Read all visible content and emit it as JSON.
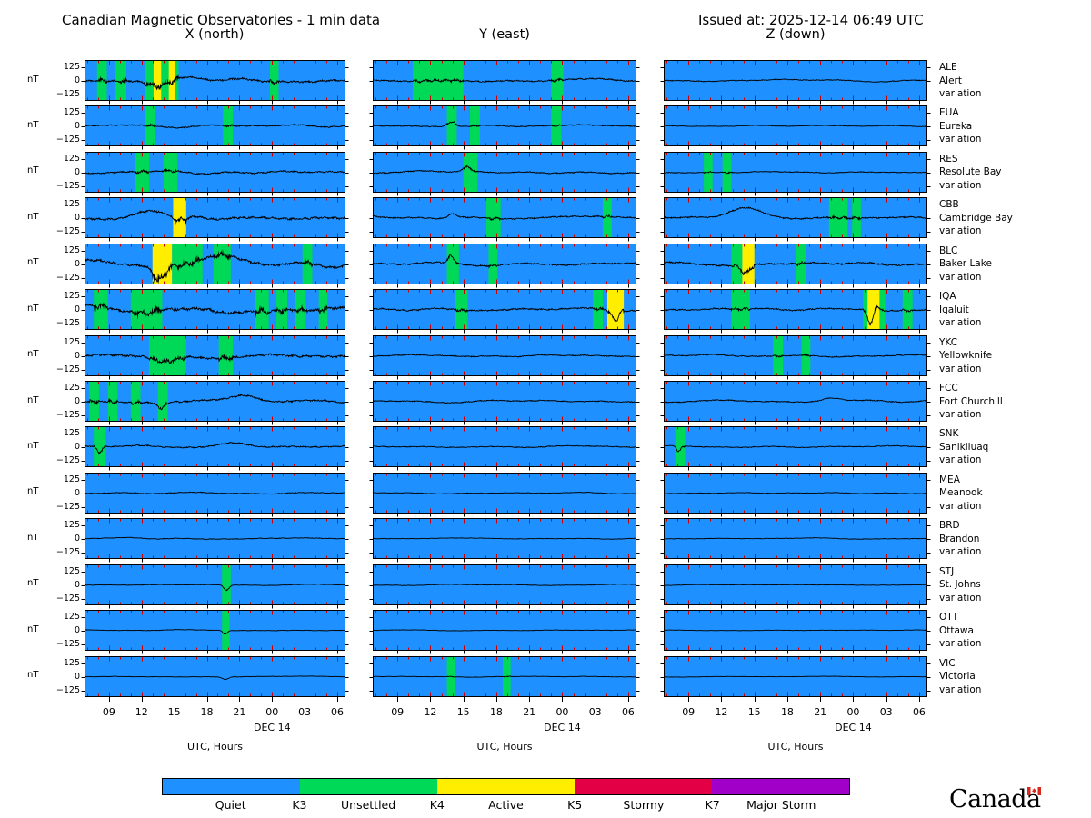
{
  "header": {
    "title": "Canadian Magnetic Observatories - 1 min data",
    "issued": "Issued at: 2025-12-14 06:49 UTC"
  },
  "colors": {
    "quiet": "#1E90FF",
    "unsettled": "#00D957",
    "active": "#FFEE00",
    "stormy": "#E30045",
    "major_storm": "#A100C8",
    "trace": "#000000",
    "tick_red": "#CC0000"
  },
  "chart_data": {
    "type": "line",
    "title": "Canadian Magnetic Observatories - 1 min data",
    "columns": [
      {
        "key": "X",
        "title": "X (north)"
      },
      {
        "key": "Y",
        "title": "Y (east)"
      },
      {
        "key": "Z",
        "title": "Z (down)"
      }
    ],
    "x_axis": {
      "tick_hours": [
        9,
        12,
        15,
        18,
        21,
        24,
        27,
        30
      ],
      "tick_labels": [
        "09",
        "12",
        "15",
        "18",
        "21",
        "00",
        "03",
        "06"
      ],
      "start_hour": 6.75,
      "end_hour": 30.75,
      "date_label": "DEC 14",
      "date_under_label": "00",
      "axis_title": "UTC, Hours"
    },
    "y_axis": {
      "unit": "nT",
      "tick_labels": [
        "125",
        "0",
        "−125"
      ],
      "tick_values": [
        125,
        0,
        -125
      ],
      "ylim": [
        -187.5,
        187.5
      ]
    },
    "band_color_map": {
      "g": "unsettled",
      "y": "active"
    },
    "station_label_suffix": "variation",
    "stations": [
      {
        "code": "ALE",
        "name": "Alert",
        "panels": {
          "X": {
            "amp": 25,
            "bands": [
              {
                "s": 7.9,
                "e": 8.8,
                "l": "g"
              },
              {
                "s": 9.6,
                "e": 10.6,
                "l": "g"
              },
              {
                "s": 12.3,
                "e": 15.4,
                "l": "g"
              },
              {
                "s": 13.1,
                "e": 13.8,
                "l": "y"
              },
              {
                "s": 14.5,
                "e": 15.1,
                "l": "y"
              },
              {
                "s": 23.8,
                "e": 24.6,
                "l": "g"
              }
            ],
            "events": [
              {
                "t": 13.5,
                "w": 1.2,
                "a": -40
              }
            ]
          },
          "Y": {
            "amp": 16,
            "bands": [
              {
                "s": 10.4,
                "e": 15.0,
                "l": "g"
              },
              {
                "s": 23.0,
                "e": 24.1,
                "l": "g"
              }
            ],
            "events": []
          },
          "Z": {
            "amp": 10,
            "bands": [],
            "events": []
          }
        }
      },
      {
        "code": "EUA",
        "name": "Eureka",
        "panels": {
          "X": {
            "amp": 14,
            "bands": [
              {
                "s": 12.3,
                "e": 13.2,
                "l": "g"
              },
              {
                "s": 19.5,
                "e": 20.4,
                "l": "g"
              }
            ],
            "events": []
          },
          "Y": {
            "amp": 12,
            "bands": [
              {
                "s": 13.5,
                "e": 14.4,
                "l": "g"
              },
              {
                "s": 15.6,
                "e": 16.5,
                "l": "g"
              },
              {
                "s": 23.0,
                "e": 23.9,
                "l": "g"
              }
            ],
            "events": [
              {
                "t": 13.9,
                "w": 0.5,
                "a": 45
              }
            ]
          },
          "Z": {
            "amp": 7,
            "bands": [],
            "events": []
          }
        }
      },
      {
        "code": "RES",
        "name": "Resolute Bay",
        "panels": {
          "X": {
            "amp": 17,
            "bands": [
              {
                "s": 11.4,
                "e": 12.7,
                "l": "g"
              },
              {
                "s": 14.0,
                "e": 15.3,
                "l": "g"
              }
            ],
            "events": []
          },
          "Y": {
            "amp": 13,
            "bands": [
              {
                "s": 15.0,
                "e": 16.3,
                "l": "g"
              }
            ],
            "events": [
              {
                "t": 15.3,
                "w": 0.5,
                "a": 40
              }
            ]
          },
          "Z": {
            "amp": 9,
            "bands": [
              {
                "s": 10.4,
                "e": 11.2,
                "l": "g"
              },
              {
                "s": 12.1,
                "e": 12.9,
                "l": "g"
              }
            ],
            "events": []
          }
        }
      },
      {
        "code": "CBB",
        "name": "Cambridge Bay",
        "panels": {
          "X": {
            "amp": 26,
            "bands": [
              {
                "s": 14.9,
                "e": 16.1,
                "l": "y"
              }
            ],
            "events": [
              {
                "t": 13.0,
                "w": 2.0,
                "a": 45
              },
              {
                "t": 15.5,
                "w": 0.9,
                "a": -60
              }
            ]
          },
          "Y": {
            "amp": 16,
            "bands": [
              {
                "s": 17.1,
                "e": 18.4,
                "l": "g"
              },
              {
                "s": 27.7,
                "e": 28.5,
                "l": "g"
              }
            ],
            "events": [
              {
                "t": 14.0,
                "w": 0.6,
                "a": 40
              }
            ]
          },
          "Z": {
            "amp": 18,
            "bands": [
              {
                "s": 21.8,
                "e": 23.5,
                "l": "g"
              },
              {
                "s": 23.9,
                "e": 24.7,
                "l": "g"
              }
            ],
            "events": [
              {
                "t": 14.3,
                "w": 2.2,
                "a": 75
              }
            ]
          }
        }
      },
      {
        "code": "BLC",
        "name": "Baker Lake",
        "panels": {
          "X": {
            "amp": 32,
            "bands": [
              {
                "s": 13.0,
                "e": 14.8,
                "l": "y"
              },
              {
                "s": 14.8,
                "e": 17.6,
                "l": "g"
              },
              {
                "s": 18.6,
                "e": 20.2,
                "l": "g"
              },
              {
                "s": 26.8,
                "e": 27.7,
                "l": "g"
              }
            ],
            "events": [
              {
                "t": 13.6,
                "w": 0.7,
                "a": -120
              },
              {
                "t": 19.5,
                "w": 2.5,
                "a": 55
              }
            ]
          },
          "Y": {
            "amp": 18,
            "bands": [
              {
                "s": 13.5,
                "e": 14.6,
                "l": "g"
              },
              {
                "s": 17.3,
                "e": 18.1,
                "l": "g"
              }
            ],
            "events": [
              {
                "t": 13.9,
                "w": 0.35,
                "a": 70
              }
            ]
          },
          "Z": {
            "amp": 20,
            "bands": [
              {
                "s": 12.9,
                "e": 13.9,
                "l": "g"
              },
              {
                "s": 13.9,
                "e": 15.0,
                "l": "y"
              },
              {
                "s": 18.8,
                "e": 19.7,
                "l": "g"
              }
            ],
            "events": [
              {
                "t": 14.2,
                "w": 0.5,
                "a": -80
              }
            ]
          }
        }
      },
      {
        "code": "IQA",
        "name": "Iqaluit",
        "panels": {
          "X": {
            "amp": 36,
            "bands": [
              {
                "s": 7.6,
                "e": 8.9,
                "l": "g"
              },
              {
                "s": 11.0,
                "e": 13.9,
                "l": "g"
              },
              {
                "s": 22.4,
                "e": 23.7,
                "l": "g"
              },
              {
                "s": 24.4,
                "e": 25.4,
                "l": "g"
              },
              {
                "s": 26.1,
                "e": 27.1,
                "l": "g"
              },
              {
                "s": 28.3,
                "e": 29.1,
                "l": "g"
              }
            ],
            "events": [
              {
                "t": 12.5,
                "w": 1.5,
                "a": -55
              }
            ]
          },
          "Y": {
            "amp": 18,
            "bands": [
              {
                "s": 14.2,
                "e": 15.4,
                "l": "g"
              },
              {
                "s": 26.8,
                "e": 27.7,
                "l": "g"
              },
              {
                "s": 28.1,
                "e": 29.6,
                "l": "y"
              }
            ],
            "events": [
              {
                "t": 28.8,
                "w": 0.4,
                "a": -95
              }
            ]
          },
          "Z": {
            "amp": 16,
            "bands": [
              {
                "s": 12.9,
                "e": 14.6,
                "l": "g"
              },
              {
                "s": 24.9,
                "e": 25.3,
                "l": "g"
              },
              {
                "s": 25.3,
                "e": 26.4,
                "l": "y"
              },
              {
                "s": 26.4,
                "e": 26.9,
                "l": "g"
              },
              {
                "s": 28.5,
                "e": 29.4,
                "l": "g"
              }
            ],
            "events": [
              {
                "t": 25.6,
                "w": 0.35,
                "a": -135
              },
              {
                "t": 26.1,
                "w": 0.3,
                "a": 55
              }
            ]
          }
        }
      },
      {
        "code": "YKC",
        "name": "Yellowknife",
        "panels": {
          "X": {
            "amp": 27,
            "bands": [
              {
                "s": 12.7,
                "e": 16.1,
                "l": "g"
              },
              {
                "s": 19.1,
                "e": 20.4,
                "l": "g"
              }
            ],
            "events": [
              {
                "t": 14.2,
                "w": 1.6,
                "a": -70
              }
            ]
          },
          "Y": {
            "amp": 12,
            "bands": [],
            "events": []
          },
          "Z": {
            "amp": 12,
            "bands": [
              {
                "s": 16.7,
                "e": 17.6,
                "l": "g"
              },
              {
                "s": 19.3,
                "e": 20.1,
                "l": "g"
              }
            ],
            "events": []
          }
        }
      },
      {
        "code": "FCC",
        "name": "Fort Churchill",
        "panels": {
          "X": {
            "amp": 21,
            "bands": [
              {
                "s": 7.2,
                "e": 8.1,
                "l": "g"
              },
              {
                "s": 8.9,
                "e": 9.8,
                "l": "g"
              },
              {
                "s": 11.0,
                "e": 11.9,
                "l": "g"
              },
              {
                "s": 13.5,
                "e": 14.4,
                "l": "g"
              }
            ],
            "events": [
              {
                "t": 13.8,
                "w": 0.5,
                "a": -50
              },
              {
                "t": 21.5,
                "w": 1.5,
                "a": 40
              }
            ]
          },
          "Y": {
            "amp": 12,
            "bands": [],
            "events": []
          },
          "Z": {
            "amp": 12,
            "bands": [],
            "events": [
              {
                "t": 22.0,
                "w": 1.2,
                "a": 30
              }
            ]
          }
        }
      },
      {
        "code": "SNK",
        "name": "Sanikiluaq",
        "panels": {
          "X": {
            "amp": 16,
            "bands": [
              {
                "s": 7.6,
                "e": 8.7,
                "l": "g"
              }
            ],
            "events": [
              {
                "t": 8.1,
                "w": 0.3,
                "a": -60
              },
              {
                "t": 20.5,
                "w": 2.0,
                "a": 35
              }
            ]
          },
          "Y": {
            "amp": 10,
            "bands": [],
            "events": []
          },
          "Z": {
            "amp": 10,
            "bands": [
              {
                "s": 7.8,
                "e": 8.7,
                "l": "g"
              }
            ],
            "events": [
              {
                "t": 8.1,
                "w": 0.25,
                "a": -55
              }
            ]
          }
        }
      },
      {
        "code": "MEA",
        "name": "Meanook",
        "panels": {
          "X": {
            "amp": 9,
            "bands": [],
            "events": []
          },
          "Y": {
            "amp": 7,
            "bands": [],
            "events": []
          },
          "Z": {
            "amp": 7,
            "bands": [],
            "events": []
          }
        }
      },
      {
        "code": "BRD",
        "name": "Brandon",
        "panels": {
          "X": {
            "amp": 8,
            "bands": [],
            "events": []
          },
          "Y": {
            "amp": 6,
            "bands": [],
            "events": []
          },
          "Z": {
            "amp": 6,
            "bands": [],
            "events": []
          }
        }
      },
      {
        "code": "STJ",
        "name": "St. Johns",
        "panels": {
          "X": {
            "amp": 6,
            "bands": [
              {
                "s": 19.4,
                "e": 20.2,
                "l": "g"
              }
            ],
            "events": [
              {
                "t": 19.8,
                "w": 0.35,
                "a": -45
              }
            ]
          },
          "Y": {
            "amp": 6,
            "bands": [],
            "events": []
          },
          "Z": {
            "amp": 5,
            "bands": [],
            "events": []
          }
        }
      },
      {
        "code": "OTT",
        "name": "Ottawa",
        "panels": {
          "X": {
            "amp": 6,
            "bands": [
              {
                "s": 19.4,
                "e": 20.1,
                "l": "g"
              }
            ],
            "events": [
              {
                "t": 19.7,
                "w": 0.3,
                "a": -32
              }
            ]
          },
          "Y": {
            "amp": 5,
            "bands": [],
            "events": []
          },
          "Z": {
            "amp": 4,
            "bands": [],
            "events": []
          }
        }
      },
      {
        "code": "VIC",
        "name": "Victoria",
        "panels": {
          "X": {
            "amp": 5,
            "bands": [],
            "events": [
              {
                "t": 19.7,
                "w": 0.4,
                "a": -22
              }
            ]
          },
          "Y": {
            "amp": 5,
            "bands": [
              {
                "s": 13.5,
                "e": 14.2,
                "l": "g"
              },
              {
                "s": 18.6,
                "e": 19.3,
                "l": "g"
              }
            ],
            "events": []
          },
          "Z": {
            "amp": 4,
            "bands": [],
            "events": []
          }
        }
      }
    ]
  },
  "legend": {
    "segments": [
      {
        "label": "Quiet",
        "color": "#1E90FF"
      },
      {
        "label": "Unsettled",
        "color": "#00D957"
      },
      {
        "label": "Active",
        "color": "#FFEE00"
      },
      {
        "label": "Stormy",
        "color": "#E30045"
      },
      {
        "label": "Major Storm",
        "color": "#A100C8"
      }
    ],
    "boundaries": [
      "K3",
      "K4",
      "K5",
      "K7"
    ]
  },
  "footer": {
    "wordmark": "Canada"
  }
}
